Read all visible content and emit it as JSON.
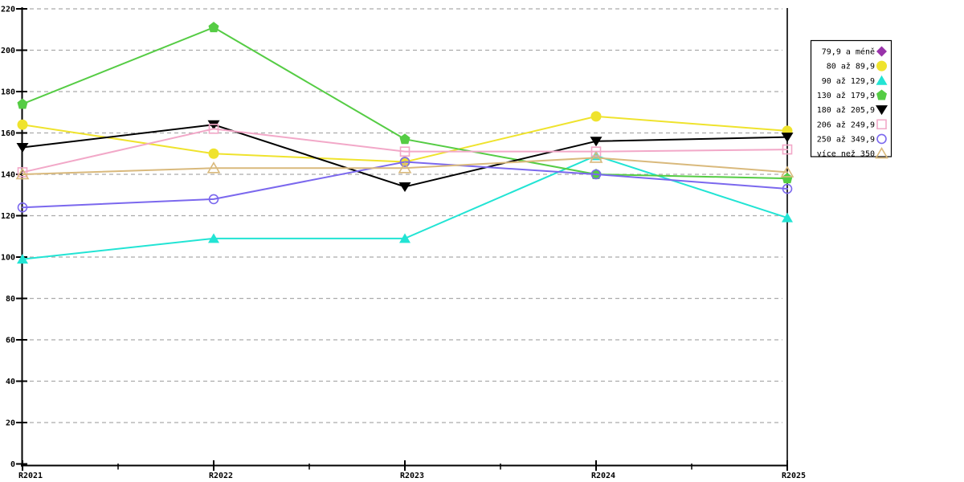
{
  "chart_data": {
    "type": "line",
    "title": "",
    "categories": [
      "R2021",
      "R2022",
      "R2023",
      "R2024",
      "R2025"
    ],
    "y_axis": {
      "min": 0,
      "max": 220,
      "step": 20,
      "tick_labels": [
        "0",
        "20",
        "40",
        "60",
        "80",
        "100",
        "120",
        "140",
        "160",
        "180",
        "200",
        "220"
      ]
    },
    "grid": "horizontal-dashed",
    "legend_position": "right",
    "series": [
      {
        "name": "79,9 a méně",
        "marker": "diamond",
        "filled": true,
        "color": "#9933AA",
        "values": []
      },
      {
        "name": "80 až 89,9",
        "marker": "circle",
        "filled": true,
        "color": "#EFE32D",
        "values": [
          164,
          150,
          146,
          168,
          161
        ]
      },
      {
        "name": "90 až 129,9",
        "marker": "triangle-up",
        "filled": true,
        "color": "#22E4D4",
        "values": [
          99,
          109,
          109,
          149,
          119
        ]
      },
      {
        "name": "130 až 179,9",
        "marker": "pentagon",
        "filled": true,
        "color": "#55CC44",
        "values": [
          174,
          211,
          157,
          140,
          138
        ]
      },
      {
        "name": "180 až 205,9",
        "marker": "triangle-down",
        "filled": true,
        "color": "#000000",
        "values": [
          153,
          164,
          134,
          156,
          158
        ]
      },
      {
        "name": "206 až 249,9",
        "marker": "square",
        "filled": false,
        "color": "#F2A8C8",
        "values": [
          141,
          162,
          151,
          151,
          152
        ]
      },
      {
        "name": "250 až 349,9",
        "marker": "circle",
        "filled": false,
        "color": "#7B68EE",
        "values": [
          124,
          128,
          146,
          140,
          133
        ]
      },
      {
        "name": "více než 350",
        "marker": "triangle-up",
        "filled": false,
        "color": "#D9B97C",
        "values": [
          140,
          143,
          143,
          148,
          141
        ]
      }
    ],
    "colors": {
      "background": "#FFFFFF",
      "axis": "#000000",
      "grid": "#ABABAB",
      "legend_border": "#000000",
      "legend_background": "#FFFFFF"
    }
  }
}
